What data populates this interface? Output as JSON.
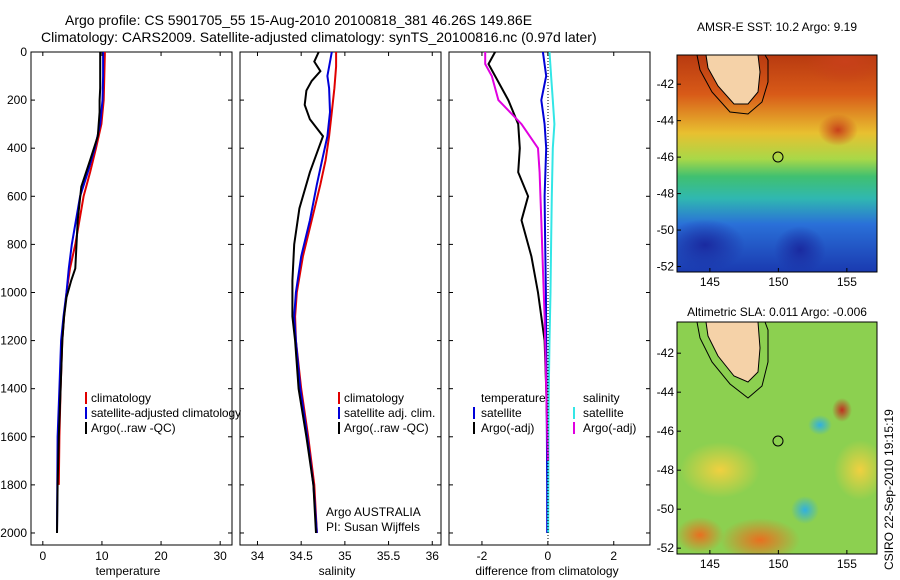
{
  "title_line1": "Argo profile: CS 5901705_55 15-Aug-2010 20100818_381 46.26S 149.86E",
  "title_line2": "Climatology: CARS2009. Satellite-adjusted climatology: synTS_20100816.nc (0.97d later)",
  "footer_text": "CSIRO 22-Sep-2010 19:15:19",
  "colors": {
    "red": "#e00000",
    "blue": "#0000d8",
    "black": "#000000",
    "cyan": "#33e6e6",
    "magenta": "#e000e0"
  },
  "chart_data": [
    {
      "id": "temperature",
      "type": "line",
      "xlabel": "temperature",
      "xlim": [
        -2,
        32
      ],
      "xticks": [
        0,
        10,
        20,
        30
      ],
      "ylim": [
        2050,
        0
      ],
      "yticks": [
        0,
        200,
        400,
        600,
        800,
        1000,
        1200,
        1400,
        1600,
        1800,
        2000
      ],
      "legend": [
        "climatology",
        "satellite-adjusted climatology",
        "Argo(..raw -QC)"
      ],
      "series": [
        {
          "name": "climatology",
          "color": "red",
          "x": [
            10.5,
            10.4,
            10.3,
            9.9,
            9.0,
            8.0,
            6.9,
            5.5,
            4.6,
            4.0,
            3.6,
            3.3,
            3.0,
            2.8,
            2.7
          ],
          "y": [
            0,
            100,
            200,
            300,
            400,
            500,
            600,
            800,
            900,
            1000,
            1100,
            1200,
            1400,
            1600,
            1800
          ]
        },
        {
          "name": "satellite-adjusted climatology",
          "color": "blue",
          "x": [
            10.2,
            10.2,
            10.1,
            9.7,
            8.8,
            7.6,
            6.3,
            4.9,
            4.4,
            4.0,
            3.5,
            3.1,
            2.8,
            2.5,
            2.4
          ],
          "y": [
            0,
            100,
            200,
            300,
            400,
            500,
            600,
            800,
            900,
            1000,
            1100,
            1200,
            1400,
            1600,
            2000
          ]
        },
        {
          "name": "Argo(..raw -QC)",
          "color": "black",
          "x": [
            9.7,
            9.7,
            9.7,
            9.6,
            9.6,
            9.3,
            8.0,
            6.5,
            5.9,
            5.5,
            4.8,
            4.0,
            3.6,
            3.3,
            3.0,
            2.7,
            2.5,
            2.4
          ],
          "y": [
            0,
            100,
            150,
            200,
            250,
            350,
            450,
            560,
            700,
            900,
            950,
            1020,
            1100,
            1200,
            1400,
            1600,
            1800,
            2000
          ]
        }
      ]
    },
    {
      "id": "salinity",
      "type": "line",
      "xlabel": "salinity",
      "xlim": [
        33.8,
        36.1
      ],
      "xticks": [
        34,
        34.5,
        35,
        35.5,
        36
      ],
      "yticks": [],
      "ylim": [
        2050,
        0
      ],
      "legend": [
        "climatology",
        "satellite adj. clim.",
        "Argo(..raw -QC)"
      ],
      "annotation": [
        "Argo AUSTRALIA",
        "PI: Susan Wijffels"
      ],
      "series": [
        {
          "name": "climatology",
          "color": "red",
          "x": [
            34.9,
            34.9,
            34.88,
            34.85,
            34.82,
            34.78,
            34.72,
            34.62,
            34.52,
            34.45,
            34.43,
            34.44,
            34.5,
            34.58,
            34.65,
            34.68
          ],
          "y": [
            0,
            60,
            150,
            250,
            350,
            450,
            550,
            700,
            850,
            1000,
            1100,
            1200,
            1400,
            1600,
            1800,
            2000
          ]
        },
        {
          "name": "satellite adj. clim.",
          "color": "blue",
          "x": [
            34.85,
            34.8,
            34.82,
            34.83,
            34.8,
            34.74,
            34.68,
            34.6,
            34.5,
            34.44,
            34.42,
            34.44,
            34.49,
            34.57,
            34.64,
            34.68
          ],
          "y": [
            0,
            100,
            150,
            250,
            350,
            450,
            550,
            700,
            850,
            1000,
            1100,
            1200,
            1400,
            1600,
            1800,
            2000
          ]
        },
        {
          "name": "Argo(..raw -QC)",
          "color": "black",
          "x": [
            34.7,
            34.65,
            34.72,
            34.62,
            34.56,
            34.54,
            34.6,
            34.75,
            34.6,
            34.48,
            34.42,
            34.4,
            34.4,
            34.43,
            34.47,
            34.56,
            34.64,
            34.67
          ],
          "y": [
            0,
            40,
            80,
            120,
            160,
            220,
            280,
            350,
            500,
            650,
            800,
            950,
            1100,
            1200,
            1400,
            1600,
            1800,
            2000
          ]
        }
      ]
    },
    {
      "id": "difference",
      "type": "line",
      "xlabel": "difference from climatology",
      "xlim": [
        -3.0,
        3.1
      ],
      "xticks": [
        -2,
        0,
        2
      ],
      "yticks": [],
      "ylim": [
        2050,
        0
      ],
      "legend_left": [
        "temperature",
        "satellite",
        "Argo(-adj)"
      ],
      "legend_right": [
        "salinity",
        "satellite",
        "Argo(-adj)"
      ],
      "series": [
        {
          "name": "temperature satellite",
          "color": "blue",
          "x": [
            -0.15,
            -0.05,
            -0.2,
            -0.1,
            -0.05,
            -0.1,
            -0.08,
            -0.06,
            -0.05,
            -0.04,
            -0.03,
            -0.02,
            -0.02
          ],
          "y": [
            0,
            100,
            200,
            300,
            400,
            600,
            800,
            1000,
            1200,
            1400,
            1600,
            1800,
            2000
          ]
        },
        {
          "name": "temperature Argo(-adj)",
          "color": "black",
          "x": [
            -1.6,
            -1.8,
            -1.6,
            -1.2,
            -0.9,
            -0.85,
            -0.9,
            -0.6,
            -0.8,
            -0.5,
            -0.3,
            -0.2,
            -0.1,
            -0.05,
            0.0
          ],
          "y": [
            0,
            50,
            100,
            200,
            300,
            400,
            500,
            600,
            700,
            850,
            1000,
            1100,
            1200,
            1400,
            1650
          ]
        },
        {
          "name": "salinity satellite",
          "color": "cyan",
          "x": [
            0.05,
            0.1,
            0.15,
            0.2,
            0.15,
            0.12,
            0.1,
            0.08,
            0.05,
            0.03,
            0.02,
            0.01
          ],
          "y": [
            0,
            100,
            200,
            300,
            400,
            600,
            800,
            1000,
            1200,
            1400,
            1600,
            2000
          ]
        },
        {
          "name": "salinity Argo(-adj)",
          "color": "magenta",
          "x": [
            -1.9,
            -1.9,
            -1.7,
            -1.5,
            -0.8,
            -0.3,
            -0.25,
            -0.2,
            -0.15,
            -0.1,
            -0.05,
            0.0
          ],
          "y": [
            0,
            50,
            100,
            200,
            300,
            400,
            500,
            700,
            900,
            1100,
            1400,
            1700
          ]
        }
      ]
    },
    {
      "id": "sst_map",
      "type": "heatmap",
      "title": "AMSR-E SST: 10.2  Argo: 9.19",
      "xticks": [
        145,
        150,
        155
      ],
      "yticks": [
        -42,
        -44,
        -46,
        -48,
        -50,
        -52
      ],
      "xlim": [
        142.6,
        157.2
      ],
      "ylim": [
        -52.3,
        -40.4
      ],
      "marker": {
        "lon": 149.86,
        "lat": -46.26
      }
    },
    {
      "id": "sla_map",
      "type": "heatmap",
      "title": "Altimetric SLA: 0.011  Argo: -0.006",
      "xticks": [
        145,
        150,
        155
      ],
      "yticks": [
        -42,
        -44,
        -46,
        -48,
        -50,
        -52
      ],
      "xlim": [
        142.6,
        157.2
      ],
      "ylim": [
        -52.3,
        -40.4
      ],
      "marker": {
        "lon": 149.86,
        "lat": -46.26
      }
    }
  ]
}
